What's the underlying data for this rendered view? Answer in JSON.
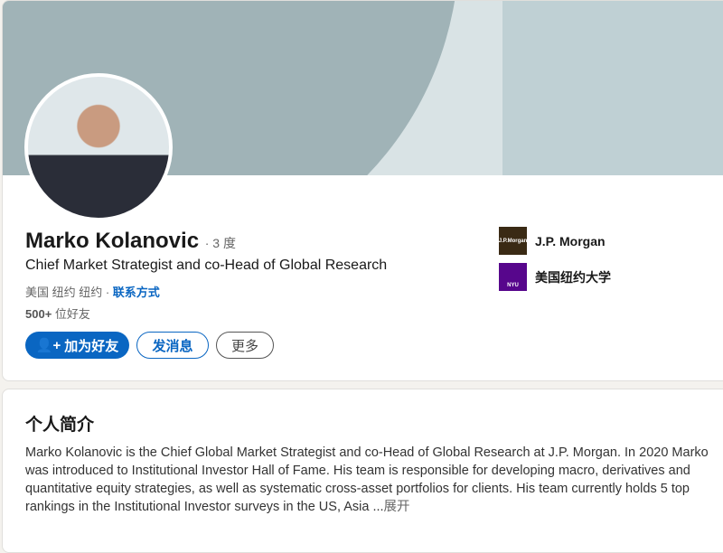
{
  "profile": {
    "name": "Marko Kolanovic",
    "degree": "· 3 度",
    "headline": "Chief Market Strategist and co-Head of Global Research",
    "location": "美国 纽约 纽约 ·",
    "contact": "联系方式",
    "connections_count": "500+",
    "connections_label": "位好友"
  },
  "actions": {
    "connect": "加为好友",
    "message": "发消息",
    "more": "更多"
  },
  "orgs": [
    {
      "name": "J.P. Morgan",
      "logo_text": "J.P.Morgan",
      "color": "#3a2a14"
    },
    {
      "name": "美国纽约大学",
      "logo_text": "NYU",
      "color": "#57068c"
    }
  ],
  "about": {
    "title": "个人简介",
    "text": "Marko Kolanovic is the Chief Global Market Strategist and co-Head of Global Research at J.P. Morgan. In 2020 Marko was introduced to Institutional Investor Hall of Fame. His team is responsible for developing macro, derivatives and quantitative equity strategies, as well as systematic cross-asset portfolios for clients. His team currently holds 5 top rankings in the Institutional Investor surveys in the US, Asia ...",
    "expand": "展开"
  },
  "colors": {
    "accent": "#0a66c2"
  }
}
